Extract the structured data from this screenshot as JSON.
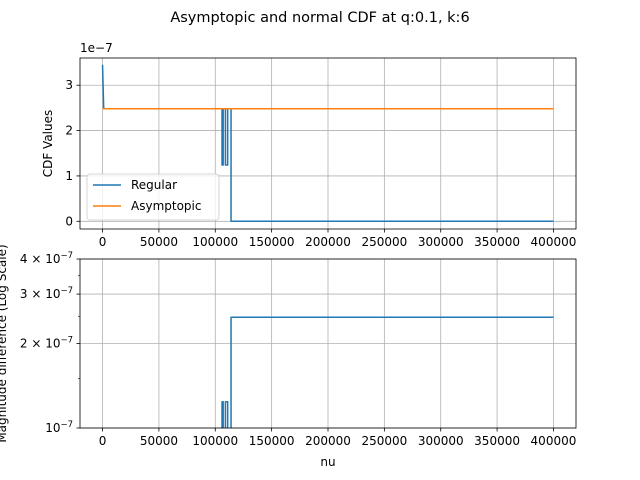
{
  "figure": {
    "title": "Asymptopic and normal CDF at q:0.1, k:6"
  },
  "chart_data": [
    {
      "type": "line",
      "title": "",
      "xlabel": "",
      "ylabel": "CDF Values",
      "offset_text": "1e−7",
      "xlim": [
        -20000,
        420000
      ],
      "ylim": [
        -1.7e-08,
        3.6e-07
      ],
      "x_ticks": [
        0,
        50000,
        100000,
        150000,
        200000,
        250000,
        300000,
        350000,
        400000
      ],
      "x_tick_labels": [
        "0",
        "50000",
        "100000",
        "150000",
        "200000",
        "250000",
        "300000",
        "350000",
        "400000"
      ],
      "y_ticks": [
        0,
        1e-07,
        2e-07,
        3e-07
      ],
      "y_tick_labels": [
        "0",
        "1",
        "2",
        "3"
      ],
      "grid": true,
      "legend_placement": "lower-left",
      "series": [
        {
          "name": "Regular",
          "color": "#1f77b4",
          "x": [
            0,
            1000,
            2000,
            106000,
            106000,
            107000,
            107000,
            109000,
            109000,
            111000,
            111000,
            114000,
            114000,
            400000
          ],
          "y": [
            3.45e-07,
            2.5e-07,
            2.48e-07,
            2.48e-07,
            1.24e-07,
            1.24e-07,
            2.48e-07,
            2.48e-07,
            1.24e-07,
            1.24e-07,
            2.48e-07,
            2.48e-07,
            0,
            0
          ]
        },
        {
          "name": "Asymptopic",
          "color": "#ff7f0e",
          "x": [
            0,
            400000
          ],
          "y": [
            2.48e-07,
            2.48e-07
          ]
        }
      ]
    },
    {
      "type": "line",
      "title": "",
      "xlabel": "nu",
      "ylabel": "Magnitude difference (Log Scale)",
      "yscale": "log",
      "xlim": [
        -20000,
        420000
      ],
      "ylim": [
        1e-07,
        4e-07
      ],
      "x_ticks": [
        0,
        50000,
        100000,
        150000,
        200000,
        250000,
        300000,
        350000,
        400000
      ],
      "x_tick_labels": [
        "0",
        "50000",
        "100000",
        "150000",
        "200000",
        "250000",
        "300000",
        "350000",
        "400000"
      ],
      "y_ticks": [
        1e-07,
        2e-07,
        3e-07,
        4e-07
      ],
      "y_tick_labels": [
        "10−7",
        "2 × 10−7",
        "3 × 10−7",
        "4 × 10−7"
      ],
      "grid": true,
      "series": [
        {
          "name": "",
          "color": "#1f77b4",
          "x": [
            106000,
            106000,
            107000,
            107000,
            109000,
            109000,
            111000,
            111000,
            114000,
            114000,
            400000
          ],
          "y": [
            9e-08,
            1.24e-07,
            1.24e-07,
            9e-08,
            9e-08,
            1.24e-07,
            1.24e-07,
            9e-08,
            9e-08,
            2.48e-07,
            2.48e-07
          ]
        }
      ]
    }
  ]
}
